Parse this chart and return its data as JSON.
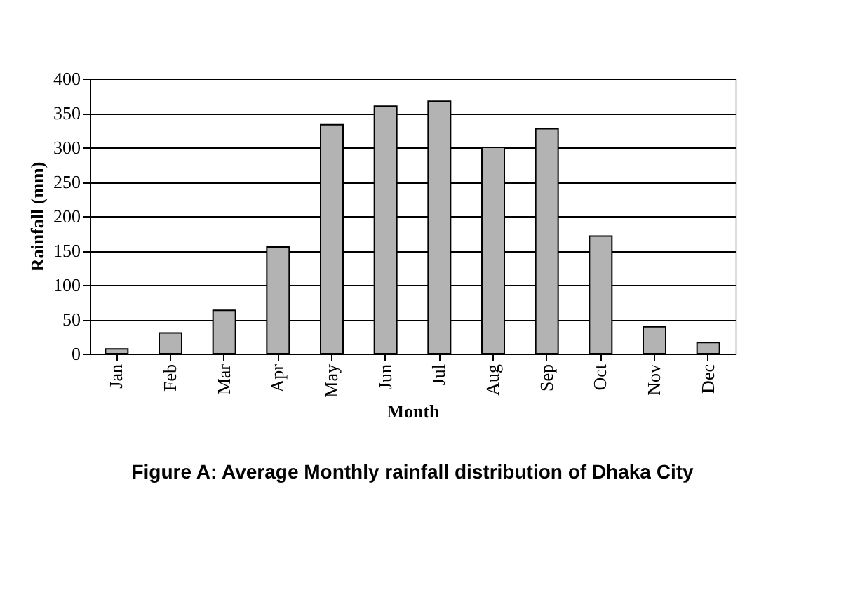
{
  "chart_data": {
    "type": "bar",
    "title": "Figure A: Average Monthly rainfall distribution of Dhaka City",
    "xlabel": "Month",
    "ylabel": "Rainfall (mm)",
    "categories": [
      "Jan",
      "Feb",
      "Mar",
      "Apr",
      "May",
      "Jun",
      "Jul",
      "Aug",
      "Sep",
      "Oct",
      "Nov",
      "Dec"
    ],
    "values": [
      7,
      30,
      63,
      155,
      333,
      360,
      367,
      300,
      327,
      171,
      39,
      16
    ],
    "color": "#b3b3b3",
    "ylim": [
      0,
      400
    ],
    "yticks": [
      0,
      50,
      100,
      150,
      200,
      250,
      300,
      350,
      400
    ],
    "grid": "y"
  }
}
